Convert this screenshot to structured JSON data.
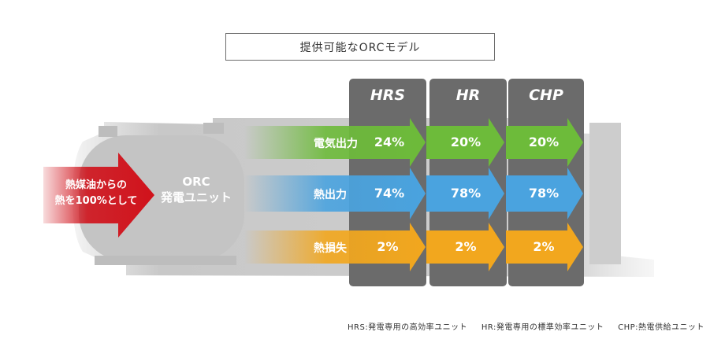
{
  "title": "提供可能なORCモデル",
  "input": {
    "line1": "熱媒油からの",
    "line2": "熱を100%として"
  },
  "unit": {
    "line1": "ORC",
    "line2": "発電ユニット"
  },
  "models": [
    "HRS",
    "HR",
    "CHP"
  ],
  "rows": [
    {
      "label": "電気出力",
      "values": [
        "24%",
        "20%",
        "20%"
      ],
      "color": "#6dbb3a"
    },
    {
      "label": "熱出力",
      "values": [
        "74%",
        "78%",
        "78%"
      ],
      "color": "#4aa3df"
    },
    {
      "label": "熱損失",
      "values": [
        "2%",
        "2%",
        "2%"
      ],
      "color": "#f2a71e"
    }
  ],
  "colors": {
    "input_arrow": "#d0121b",
    "column": "#6b6b6b",
    "machine": "#c8c8c8"
  },
  "footnotes": [
    "HRS:発電専用の高効率ユニット",
    "HR:発電専用の標準効率ユニット",
    "CHP:熱電供給ユニット"
  ]
}
